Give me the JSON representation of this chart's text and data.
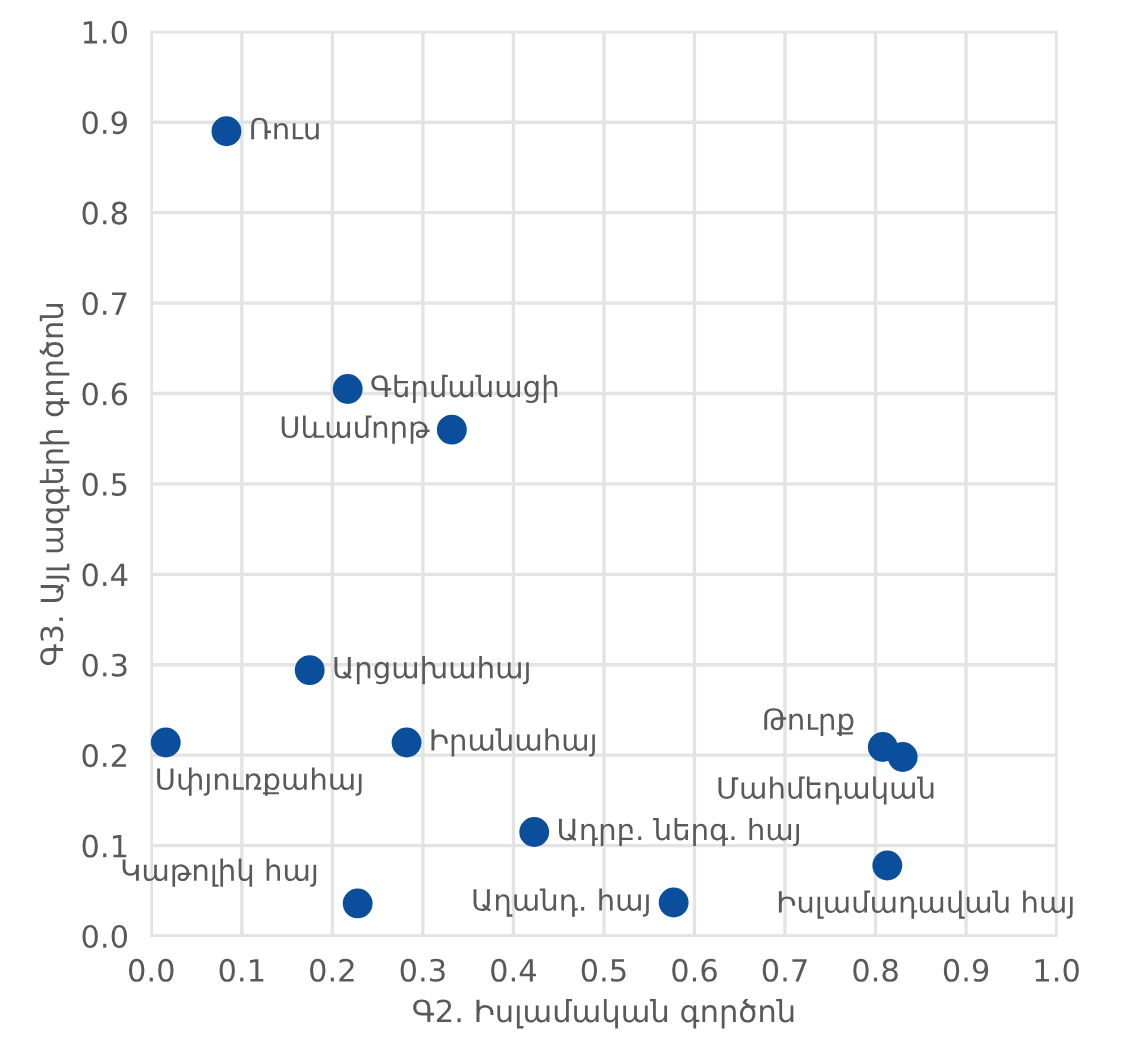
{
  "chart_data": {
    "type": "scatter",
    "xlabel": "Գ2. Իսլամական գործոն",
    "ylabel": "Գ3. Այլ ազգերի գործոն",
    "x": [
      0.083,
      0.217,
      0.332,
      0.175,
      0.016,
      0.282,
      0.423,
      0.228,
      0.577,
      0.808,
      0.83,
      0.813
    ],
    "series": [
      {
        "color": "#0b4f9c",
        "values": [
          0.89,
          0.605,
          0.56,
          0.294,
          0.214,
          0.214,
          0.115,
          0.036,
          0.037,
          0.209,
          0.198,
          0.078
        ]
      }
    ],
    "annotations": [
      {
        "text": "Ռուս",
        "x": 0.083,
        "y": 0.89
      },
      {
        "text": "Գերմանացի",
        "x": 0.217,
        "y": 0.605
      },
      {
        "text": "Սևամորթ",
        "x": 0.332,
        "y": 0.56
      },
      {
        "text": "Արցախահայ",
        "x": 0.175,
        "y": 0.294
      },
      {
        "text": "Սփյուռքահայ",
        "x": 0.016,
        "y": 0.214
      },
      {
        "text": "Իրանահայ",
        "x": 0.282,
        "y": 0.214
      },
      {
        "text": "Ադրբ. ներգ. հայ",
        "x": 0.423,
        "y": 0.115
      },
      {
        "text": "Կաթոլիկ հայ",
        "x": 0.228,
        "y": 0.036
      },
      {
        "text": "Աղանդ. հայ",
        "x": 0.577,
        "y": 0.037
      },
      {
        "text": "Թուրք",
        "x": 0.808,
        "y": 0.209
      },
      {
        "text": "Մահմեդական",
        "x": 0.83,
        "y": 0.198
      },
      {
        "text": "Իսլամադավան հայ",
        "x": 0.813,
        "y": 0.078
      }
    ],
    "xlim": [
      0,
      1
    ],
    "ylim": [
      0,
      1
    ],
    "xticks": [
      {
        "value": 0,
        "label": "0.0"
      },
      0.1,
      0.2,
      0.3,
      0.4,
      0.5,
      0.6,
      0.7,
      0.8,
      0.9,
      {
        "value": 1,
        "label": "1.0"
      }
    ],
    "yticks": [
      {
        "value": 0,
        "label": "0.0"
      },
      0.1,
      0.2,
      0.3,
      0.4,
      0.5,
      0.6,
      0.7,
      0.8,
      0.9,
      {
        "value": 1,
        "label": "1.0"
      }
    ],
    "grid": true,
    "marker": "circle"
  }
}
